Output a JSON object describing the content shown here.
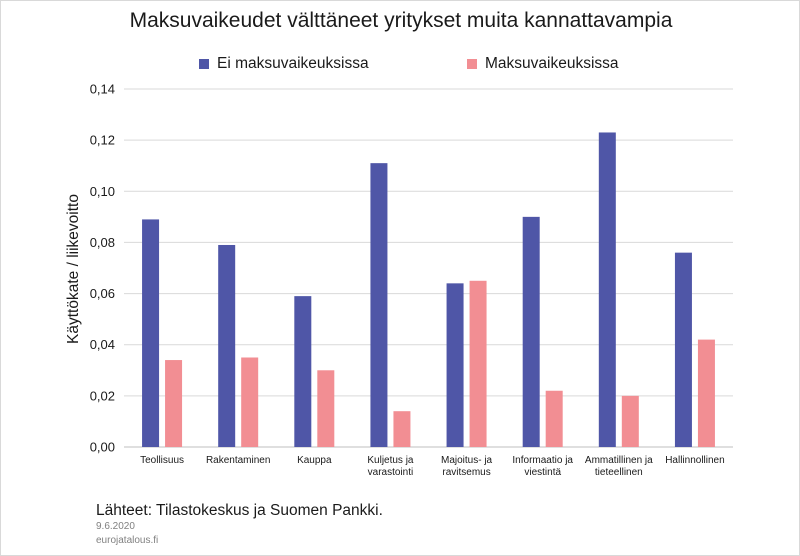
{
  "chart_data": {
    "type": "bar",
    "title": "Maksuvaikeudet välttäneet yritykset muita kannattavampia",
    "ylabel": "Käyttökate / liikevoitto",
    "xlabel": "",
    "ylim": [
      0,
      0.14
    ],
    "yticks": [
      "0,00",
      "0,02",
      "0,04",
      "0,06",
      "0,08",
      "0,10",
      "0,12",
      "0,14"
    ],
    "grid": true,
    "legend_position": "top",
    "categories": [
      [
        "Teollisuus"
      ],
      [
        "Rakentaminen"
      ],
      [
        "Kauppa"
      ],
      [
        "Kuljetus ja",
        "varastointi"
      ],
      [
        "Majoitus- ja",
        "ravitsemus"
      ],
      [
        "Informaatio ja",
        "viestintä"
      ],
      [
        "Ammatillinen ja",
        "tieteellinen"
      ],
      [
        "Hallinnollinen"
      ]
    ],
    "series": [
      {
        "name": "Ei maksuvaikeuksissa",
        "color": "#4f56a7",
        "values": [
          0.089,
          0.079,
          0.059,
          0.111,
          0.064,
          0.09,
          0.123,
          0.076
        ]
      },
      {
        "name": "Maksuvaikeuksissa",
        "color": "#f28e93",
        "values": [
          0.034,
          0.035,
          0.03,
          0.014,
          0.065,
          0.022,
          0.02,
          0.042
        ]
      }
    ]
  },
  "footer": {
    "source": "Lähteet: Tilastokeskus ja Suomen Pankki.",
    "date": "9.6.2020",
    "site": "eurojatalous.fi"
  }
}
